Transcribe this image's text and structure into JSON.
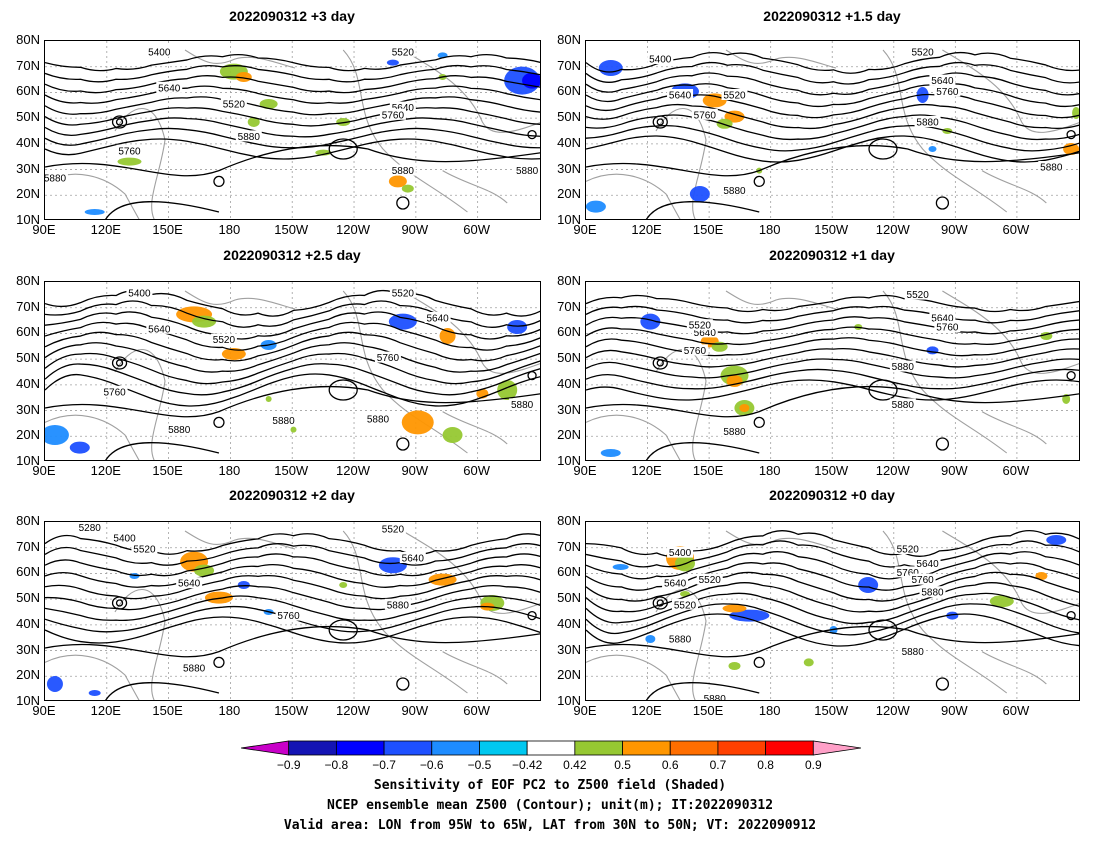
{
  "panels": [
    {
      "title": "2022090312  +3 day",
      "lon_labels": [
        "90E",
        "120E",
        "150E",
        "180",
        "150W",
        "120W",
        "90W",
        "60W"
      ],
      "lat_labels": [
        "80N",
        "70N",
        "60N",
        "50N",
        "40N",
        "30N",
        "20N",
        "10N"
      ],
      "contour_labels": [
        "5400",
        "5520",
        "5640",
        "5520",
        "5640",
        "5760",
        "5880",
        "5760",
        "5880",
        "5880",
        "5880"
      ]
    },
    {
      "title": "2022090312  +1.5 day",
      "lon_labels": [
        "90E",
        "120E",
        "150E",
        "180",
        "150W",
        "120W",
        "90W",
        "60W"
      ],
      "lat_labels": [
        "80N",
        "70N",
        "60N",
        "50N",
        "40N",
        "30N",
        "20N",
        "10N"
      ],
      "contour_labels": [
        "5400",
        "5520",
        "5640",
        "5520",
        "5760",
        "5640",
        "5760",
        "5880",
        "5880",
        "5880"
      ]
    },
    {
      "title": "2022090312  +2.5 day",
      "lon_labels": [
        "90E",
        "120E",
        "150E",
        "180",
        "150W",
        "120W",
        "90W",
        "60W"
      ],
      "lat_labels": [
        "80N",
        "70N",
        "60N",
        "50N",
        "40N",
        "30N",
        "20N",
        "10N"
      ],
      "contour_labels": [
        "5400",
        "5520",
        "5640",
        "5520",
        "5640",
        "5760",
        "5760",
        "5880",
        "5880",
        "5880",
        "5880"
      ]
    },
    {
      "title": "2022090312  +1 day",
      "lon_labels": [
        "90E",
        "120E",
        "150E",
        "180",
        "150W",
        "120W",
        "90W",
        "60W"
      ],
      "lat_labels": [
        "80N",
        "70N",
        "60N",
        "50N",
        "40N",
        "30N",
        "20N",
        "10N"
      ],
      "contour_labels": [
        "5520",
        "5640",
        "5520",
        "5640",
        "5760",
        "5760",
        "5880",
        "5880",
        "5880"
      ]
    },
    {
      "title": "2022090312  +2 day",
      "lon_labels": [
        "90E",
        "120E",
        "150E",
        "180",
        "150W",
        "120W",
        "90W",
        "60W"
      ],
      "lat_labels": [
        "80N",
        "70N",
        "60N",
        "50N",
        "40N",
        "30N",
        "20N",
        "10N"
      ],
      "contour_labels": [
        "5280",
        "5400",
        "5520",
        "5520",
        "5640",
        "5640",
        "5760",
        "5880",
        "5880"
      ]
    },
    {
      "title": "2022090312  +0 day",
      "lon_labels": [
        "90E",
        "120E",
        "150E",
        "180",
        "150W",
        "120W",
        "90W",
        "60W"
      ],
      "lat_labels": [
        "80N",
        "70N",
        "60N",
        "50N",
        "40N",
        "30N",
        "20N",
        "10N"
      ],
      "contour_labels": [
        "5400",
        "5520",
        "5640",
        "5520",
        "5760",
        "5520",
        "5640",
        "5760",
        "5880",
        "5880",
        "5880",
        "5880"
      ]
    }
  ],
  "colorbar": {
    "labels": [
      "−0.9",
      "−0.8",
      "−0.7",
      "−0.6",
      "−0.5",
      "−0.42",
      "0.42",
      "0.5",
      "0.6",
      "0.7",
      "0.8",
      "0.9"
    ],
    "colors": [
      "#c800c8",
      "#1414b4",
      "#0000ff",
      "#1e50ff",
      "#1e8cff",
      "#00c8f0",
      "#ffffff",
      "#96c832",
      "#ff9600",
      "#ff6e00",
      "#ff4000",
      "#ff0000",
      "#ffa0c8"
    ]
  },
  "captions": [
    "Sensitivity of EOF PC2 to Z500 field (Shaded)",
    "NCEP ensemble mean Z500 (Contour); unit(m); IT:2022090312",
    "Valid area: LON from 95W to 65W, LAT from 30N to 50N; VT: 2022090912"
  ],
  "legend_colors": {
    "contour": "#000000",
    "coast": "#a0a0a0",
    "grid": "#a0a0a0"
  }
}
